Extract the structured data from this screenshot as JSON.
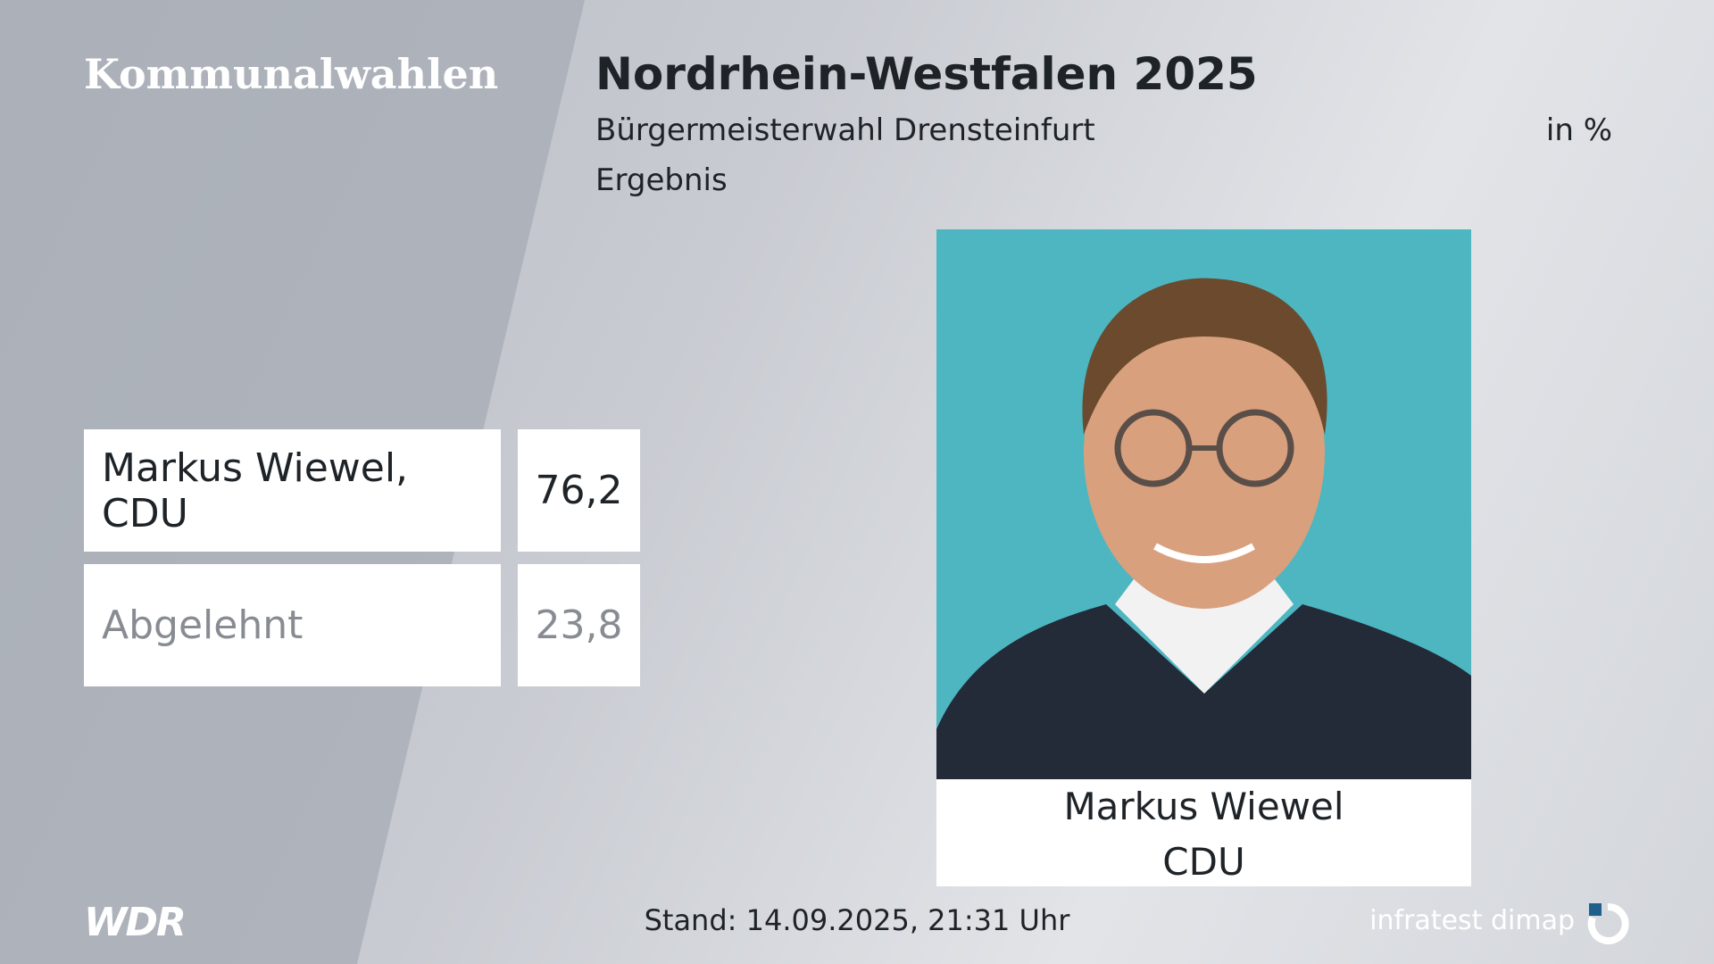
{
  "header": {
    "category": "Kommunalwahlen",
    "title": "Nordrhein-Westfalen 2025",
    "subtitle": "Bürgermeisterwahl Drensteinfurt",
    "unit": "in %",
    "status": "Ergebnis"
  },
  "results": {
    "rows": [
      {
        "label": "Markus Wiewel, CDU",
        "value": "76,2"
      },
      {
        "label": "Abgelehnt",
        "value": "23,8"
      }
    ]
  },
  "candidate": {
    "name": "Markus Wiewel",
    "party": "CDU"
  },
  "footer": {
    "broadcaster": "WDR",
    "stand": "Stand: 14.09.2025, 21:31 Uhr",
    "source": "infratest dimap"
  }
}
